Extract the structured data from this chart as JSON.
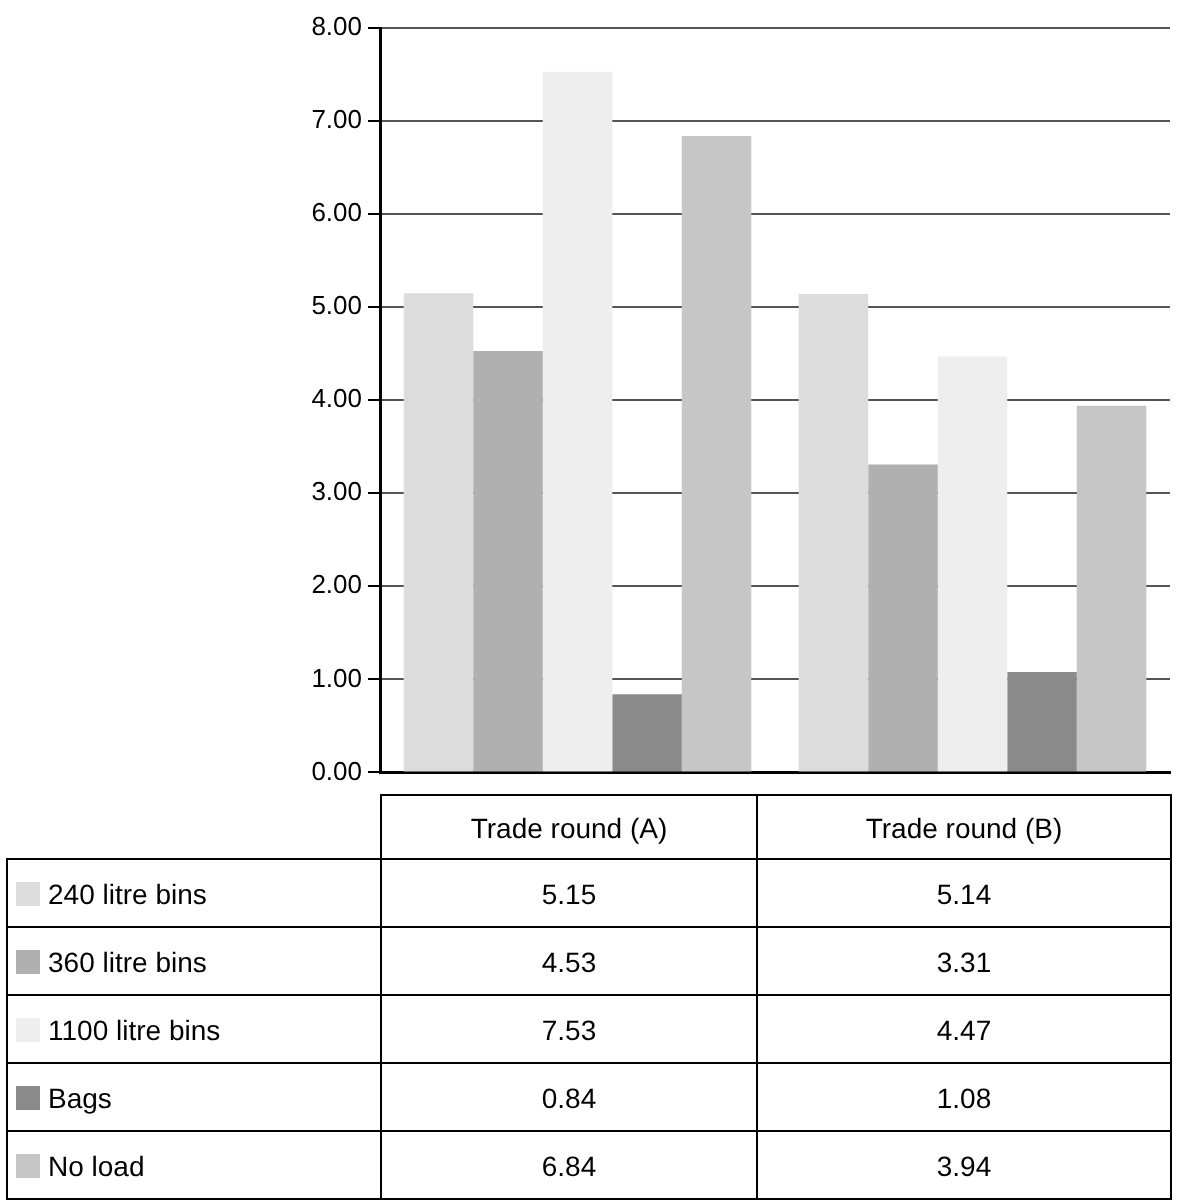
{
  "chart_data": {
    "type": "bar",
    "categories": [
      "Trade round (A)",
      "Trade round (B)"
    ],
    "series": [
      {
        "name": "240 litre bins",
        "color": "#dcdcdc",
        "values": [
          5.15,
          5.14
        ]
      },
      {
        "name": "360 litre bins",
        "color": "#b0b0b0",
        "values": [
          4.53,
          3.31
        ]
      },
      {
        "name": "1100 litre bins",
        "color": "#eeeeee",
        "values": [
          7.53,
          4.47
        ]
      },
      {
        "name": "Bags",
        "color": "#8a8a8a",
        "values": [
          0.84,
          1.08
        ]
      },
      {
        "name": "No load",
        "color": "#c6c6c6",
        "values": [
          6.84,
          3.94
        ]
      }
    ],
    "ylim": [
      0,
      8
    ],
    "yticks": [
      {
        "value": 0,
        "label": "0.00"
      },
      {
        "value": 1,
        "label": "1.00"
      },
      {
        "value": 2,
        "label": "2.00"
      },
      {
        "value": 3,
        "label": "3.00"
      },
      {
        "value": 4,
        "label": "4.00"
      },
      {
        "value": 5,
        "label": "5.00"
      },
      {
        "value": 6,
        "label": "6.00"
      },
      {
        "value": 7,
        "label": "7.00"
      },
      {
        "value": 8,
        "label": "8.00"
      }
    ],
    "grid": "y",
    "legend": "bottom",
    "data_labels": true
  }
}
